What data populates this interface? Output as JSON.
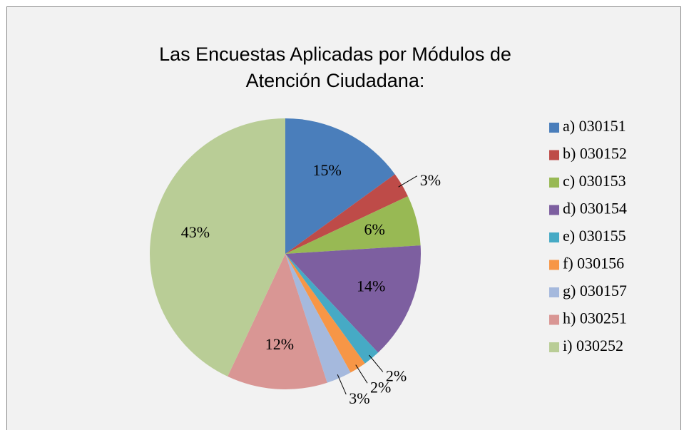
{
  "chart_data": {
    "type": "pie",
    "title": "Las Encuestas Aplicadas por Módulos de Atención Ciudadana:",
    "categories": [
      "a) 030151",
      "b) 030152",
      "c) 030153",
      "d) 030154",
      "e) 030155",
      "f) 030156",
      "g) 030157",
      "h) 030251",
      "i) 030252"
    ],
    "values": [
      15,
      3,
      6,
      14,
      2,
      2,
      3,
      12,
      43
    ],
    "value_labels": [
      "15%",
      "3%",
      "6%",
      "14%",
      "2%",
      "2%",
      "3%",
      "12%",
      "43%"
    ],
    "colors": [
      "#4a7ebb",
      "#be4b48",
      "#98b954",
      "#7d5fa0",
      "#46aac5",
      "#f79646",
      "#a5b9dd",
      "#d99694",
      "#b9cd96"
    ],
    "legend": "right"
  }
}
